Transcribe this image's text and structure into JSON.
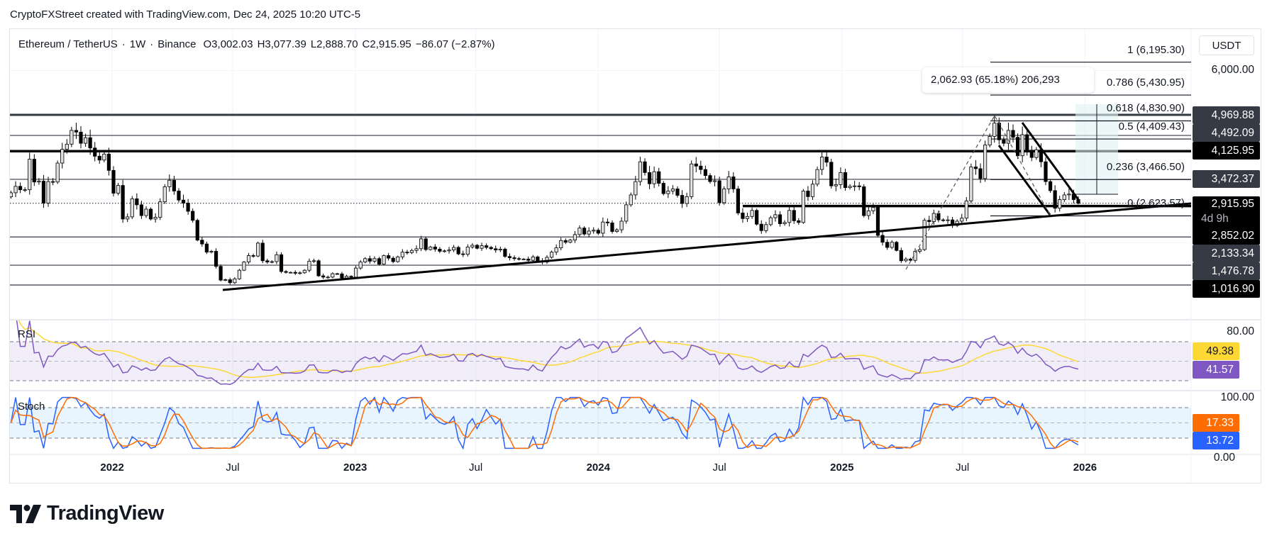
{
  "header": {
    "title": "CryptoFXStreet created with TradingView.com, Dec 24, 2025 10:20 UTC-5"
  },
  "legend": {
    "symbol": "Ethereum / TetherUS",
    "interval": "1W",
    "exchange": "Binance",
    "open": "O3,002.03",
    "high": "H3,077.39",
    "low": "L2,888.70",
    "close": "C2,915.95",
    "change": "−86.07 (−2.87%)"
  },
  "price_axis": {
    "currency_button": "USDT",
    "tick_6000": "6,000.00",
    "labels": {
      "l4969": "4,969.88",
      "l4492": "4,492.09",
      "l4125": "4,125.95",
      "l3472": "3,472.37",
      "current": "2,915.95",
      "countdown": "4d 9h",
      "l2852": "2,852.02",
      "l2133": "2,133.34",
      "l1476": "1,476.78",
      "l1016": "1,016.90"
    }
  },
  "fib": {
    "levels": [
      {
        "label": "1 (6,195.30)",
        "price": 6195.3
      },
      {
        "label": "0.786 (5,430.95)",
        "price": 5430.95
      },
      {
        "label": "0.618 (4,830.90)",
        "price": 4830.9
      },
      {
        "label": "0.5 (4,409.43)",
        "price": 4409.43
      },
      {
        "label": "0.236 (3,466.50)",
        "price": 3466.5
      },
      {
        "label": "0 (2,623.57)",
        "price": 2623.57
      }
    ],
    "measure_tooltip": "2,062.93 (65.18%) 206,293"
  },
  "levels": [
    {
      "price": 4969.88,
      "kind": "major-gray"
    },
    {
      "price": 4492.09,
      "kind": "minor"
    },
    {
      "price": 4125.95,
      "kind": "major"
    },
    {
      "price": 3472.37,
      "kind": "minor"
    },
    {
      "price": 2133.34,
      "kind": "minor"
    },
    {
      "price": 1476.78,
      "kind": "minor"
    },
    {
      "price": 1016.9,
      "kind": "minor"
    }
  ],
  "partial_level": {
    "price": 2852.02,
    "from": "2024-08-05"
  },
  "rsi": {
    "title": "RSI",
    "tick_80": "80.00",
    "ma_value": "49.38",
    "value": "41.57",
    "bands": [
      70,
      50,
      30
    ],
    "colors": {
      "rsi": "#7e57c2",
      "ma": "#fdd835"
    }
  },
  "stoch": {
    "title": "Stoch",
    "tick_100": "100.00",
    "tick_0": "0.00",
    "d_value": "17.33",
    "k_value": "13.72",
    "bands": [
      80,
      50,
      20
    ],
    "colors": {
      "k": "#2962ff",
      "d": "#ff6d00"
    }
  },
  "time_axis": [
    {
      "label": "2022",
      "date": "2022-01-01",
      "year": true
    },
    {
      "label": "Jul",
      "date": "2022-07-01",
      "year": false
    },
    {
      "label": "2023",
      "date": "2023-01-01",
      "year": true
    },
    {
      "label": "Jul",
      "date": "2023-07-01",
      "year": false
    },
    {
      "label": "2024",
      "date": "2024-01-01",
      "year": true
    },
    {
      "label": "Jul",
      "date": "2024-07-01",
      "year": false
    },
    {
      "label": "2025",
      "date": "2025-01-01",
      "year": true
    },
    {
      "label": "Jul",
      "date": "2025-07-01",
      "year": false
    },
    {
      "label": "2026",
      "date": "2026-01-01",
      "year": true
    }
  ],
  "chart_data": {
    "type": "candlestick",
    "interval": "1W",
    "scale": "linear",
    "first_week": "2021-08-02",
    "last_candle": {
      "open": 3002.03,
      "high": 3077.39,
      "low": 2888.7,
      "close": 2915.95
    },
    "closes": [
      3160,
      3310,
      3230,
      3230,
      3940,
      3410,
      3430,
      2920,
      3420,
      3410,
      3850,
      4170,
      4290,
      4610,
      4570,
      4310,
      4440,
      4200,
      4010,
      3920,
      4060,
      3680,
      3150,
      3330,
      2550,
      2600,
      3020,
      2880,
      2630,
      2780,
      2550,
      2590,
      2950,
      3300,
      3450,
      3200,
      2990,
      2920,
      2730,
      2520,
      2060,
      1970,
      1780,
      1800,
      1450,
      1130,
      1140,
      1070,
      1160,
      1360,
      1550,
      1700,
      1690,
      1990,
      1580,
      1550,
      1560,
      1720,
      1330,
      1310,
      1310,
      1290,
      1300,
      1360,
      1570,
      1580,
      1230,
      1200,
      1200,
      1280,
      1275,
      1180,
      1220,
      1200,
      1410,
      1550,
      1630,
      1570,
      1630,
      1500,
      1700,
      1640,
      1560,
      1670,
      1780,
      1770,
      1820,
      1860,
      2090,
      1840,
      1900,
      1850,
      1800,
      1810,
      1830,
      1890,
      1740,
      1730,
      1900,
      1940,
      1870,
      1930,
      1890,
      1860,
      1830,
      1850,
      1680,
      1650,
      1630,
      1620,
      1620,
      1590,
      1670,
      1580,
      1550,
      1660,
      1780,
      1880,
      2050,
      2010,
      2060,
      2190,
      2340,
      2200,
      2270,
      2290,
      2220,
      2480,
      2460,
      2260,
      2300,
      2500,
      2880,
      3110,
      3420,
      3880,
      3630,
      3370,
      3650,
      3380,
      3140,
      3200,
      3250,
      3100,
      2910,
      3070,
      3830,
      3780,
      3700,
      3560,
      3420,
      3440,
      2930,
      3250,
      3530,
      3250,
      2690,
      2560,
      2610,
      2750,
      2430,
      2280,
      2420,
      2580,
      2650,
      2440,
      2470,
      2750,
      2510,
      2470,
      3200,
      3070,
      3360,
      3700,
      3990,
      3870,
      3320,
      3350,
      3630,
      3280,
      3310,
      3320,
      3300,
      2630,
      2740,
      2820,
      2170,
      2010,
      1890,
      2010,
      1820,
      1580,
      1620,
      1590,
      1800,
      1840,
      2520,
      2490,
      2680,
      2530,
      2520,
      2530,
      2400,
      2500,
      2570,
      2970,
      3760,
      3720,
      3490,
      4270,
      4470,
      4780,
      4390,
      4310,
      4610,
      4450,
      4020,
      4510,
      4150,
      3980,
      4160,
      3880,
      3420,
      3210,
      2800,
      3000,
      3110,
      3130,
      3002.03,
      2915.95
    ],
    "y_range": [
      210,
      6980
    ],
    "colors": {
      "up_fill": "#e0e0e0",
      "down_fill": "#000000",
      "outline": "#000000"
    }
  },
  "branding": {
    "logo_text": "TradingView"
  }
}
